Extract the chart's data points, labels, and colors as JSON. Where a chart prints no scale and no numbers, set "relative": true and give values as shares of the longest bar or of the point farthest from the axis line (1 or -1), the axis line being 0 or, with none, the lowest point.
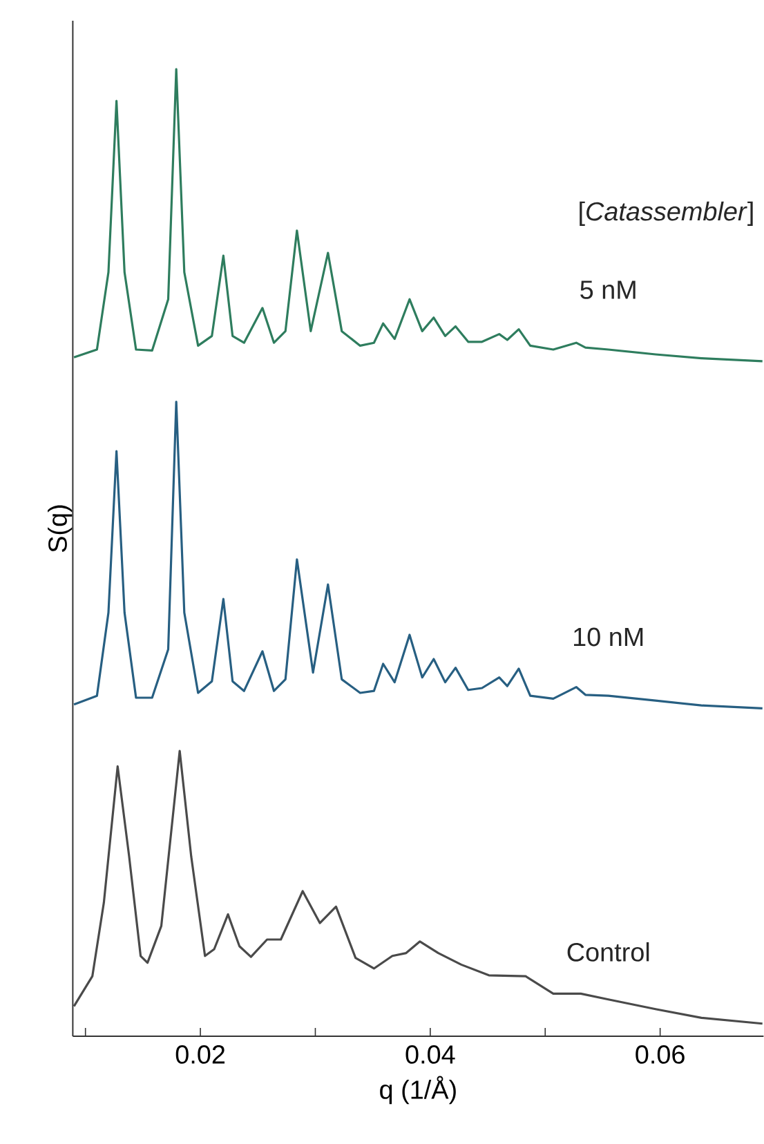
{
  "chart_data": {
    "type": "line",
    "relative": true,
    "xlabel": "q (1/Å)",
    "ylabel": "S(q)",
    "annotations": [
      "[*Catassembler*]"
    ],
    "xlim": [
      0.0089,
      0.069
    ],
    "xticks": [
      {
        "value": 0.01,
        "label": null
      },
      0.02,
      {
        "value": 0.03,
        "label": null
      },
      0.04,
      {
        "value": 0.05,
        "label": null
      },
      0.06
    ],
    "series": [
      {
        "name": "5 nM",
        "color": "#2e7d5e",
        "x": [
          0.009,
          0.011,
          0.012,
          0.0127,
          0.0134,
          0.0144,
          0.0158,
          0.0172,
          0.0179,
          0.0186,
          0.0198,
          0.021,
          0.022,
          0.0228,
          0.0238,
          0.0254,
          0.0264,
          0.0274,
          0.0284,
          0.0296,
          0.0311,
          0.0323,
          0.0339,
          0.0351,
          0.0359,
          0.0369,
          0.0382,
          0.0393,
          0.0403,
          0.0413,
          0.0422,
          0.0433,
          0.0445,
          0.046,
          0.0467,
          0.0477,
          0.0487,
          0.0507,
          0.0527,
          0.0535,
          0.0555,
          0.0596,
          0.0636,
          0.0689
        ],
        "values": [
          0.702,
          0.71,
          0.79,
          0.967,
          0.79,
          0.71,
          0.709,
          0.762,
          1.0,
          0.79,
          0.714,
          0.724,
          0.807,
          0.724,
          0.717,
          0.753,
          0.717,
          0.729,
          0.833,
          0.729,
          0.81,
          0.729,
          0.714,
          0.717,
          0.737,
          0.721,
          0.762,
          0.729,
          0.743,
          0.724,
          0.734,
          0.718,
          0.718,
          0.726,
          0.72,
          0.731,
          0.714,
          0.71,
          0.717,
          0.712,
          0.71,
          0.705,
          0.701,
          0.698
        ]
      },
      {
        "name": "10 nM",
        "color": "#275f82",
        "x": [
          0.009,
          0.011,
          0.012,
          0.0127,
          0.0134,
          0.0144,
          0.0158,
          0.0172,
          0.0179,
          0.0186,
          0.0198,
          0.021,
          0.022,
          0.0228,
          0.0238,
          0.0254,
          0.0264,
          0.0274,
          0.0284,
          0.0298,
          0.0311,
          0.0323,
          0.0339,
          0.0351,
          0.0359,
          0.0369,
          0.0382,
          0.0393,
          0.0403,
          0.0413,
          0.0422,
          0.0433,
          0.0445,
          0.046,
          0.0467,
          0.0477,
          0.0487,
          0.0507,
          0.0527,
          0.0535,
          0.0555,
          0.0596,
          0.0636,
          0.0689
        ],
        "values": [
          0.343,
          0.352,
          0.438,
          0.605,
          0.438,
          0.35,
          0.35,
          0.4,
          0.656,
          0.438,
          0.355,
          0.367,
          0.452,
          0.367,
          0.357,
          0.398,
          0.357,
          0.369,
          0.493,
          0.376,
          0.467,
          0.369,
          0.355,
          0.357,
          0.385,
          0.366,
          0.415,
          0.371,
          0.39,
          0.366,
          0.381,
          0.358,
          0.36,
          0.371,
          0.362,
          0.38,
          0.352,
          0.349,
          0.361,
          0.353,
          0.352,
          0.347,
          0.342,
          0.339
        ]
      },
      {
        "name": "Control",
        "color": "#4a4a4a",
        "x": [
          0.009,
          0.0106,
          0.0116,
          0.0128,
          0.0138,
          0.0148,
          0.0154,
          0.0166,
          0.0182,
          0.0192,
          0.0204,
          0.0212,
          0.0224,
          0.0234,
          0.0244,
          0.0258,
          0.027,
          0.0289,
          0.0304,
          0.0318,
          0.0335,
          0.0351,
          0.0367,
          0.0379,
          0.0391,
          0.0407,
          0.0427,
          0.0451,
          0.0483,
          0.0507,
          0.0531,
          0.0555,
          0.0596,
          0.0636,
          0.0689
        ],
        "values": [
          0.031,
          0.062,
          0.138,
          0.279,
          0.186,
          0.083,
          0.076,
          0.114,
          0.295,
          0.186,
          0.083,
          0.09,
          0.126,
          0.093,
          0.082,
          0.1,
          0.1,
          0.15,
          0.117,
          0.134,
          0.081,
          0.07,
          0.083,
          0.086,
          0.098,
          0.086,
          0.074,
          0.063,
          0.062,
          0.044,
          0.044,
          0.038,
          0.028,
          0.019,
          0.013
        ]
      }
    ]
  }
}
